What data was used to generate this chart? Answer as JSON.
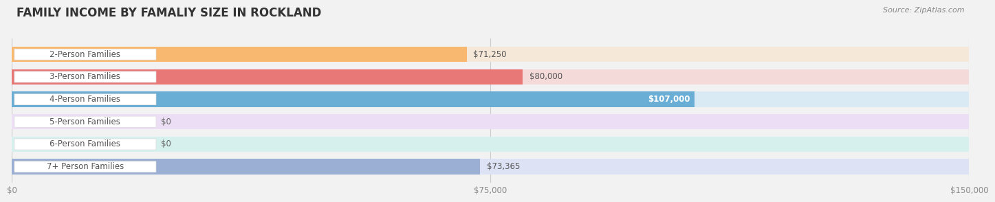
{
  "title": "FAMILY INCOME BY FAMALIY SIZE IN ROCKLAND",
  "source": "Source: ZipAtlas.com",
  "categories": [
    "2-Person Families",
    "3-Person Families",
    "4-Person Families",
    "5-Person Families",
    "6-Person Families",
    "7+ Person Families"
  ],
  "values": [
    71250,
    80000,
    107000,
    0,
    0,
    73365
  ],
  "bar_colors": [
    "#f9b870",
    "#e87878",
    "#6aaed6",
    "#c89ecf",
    "#5bbcb0",
    "#9bafd4"
  ],
  "bar_bg_colors": [
    "#f5e8d8",
    "#f5dada",
    "#daeaf5",
    "#ecdff5",
    "#d5f0ed",
    "#dde3f5"
  ],
  "xmax": 150000,
  "xtick_labels": [
    "$0",
    "$75,000",
    "$150,000"
  ],
  "xtick_values": [
    0,
    75000,
    150000
  ],
  "background_color": "#f2f2f2",
  "title_fontsize": 12,
  "label_fontsize": 8.5,
  "value_fontsize": 8.5
}
